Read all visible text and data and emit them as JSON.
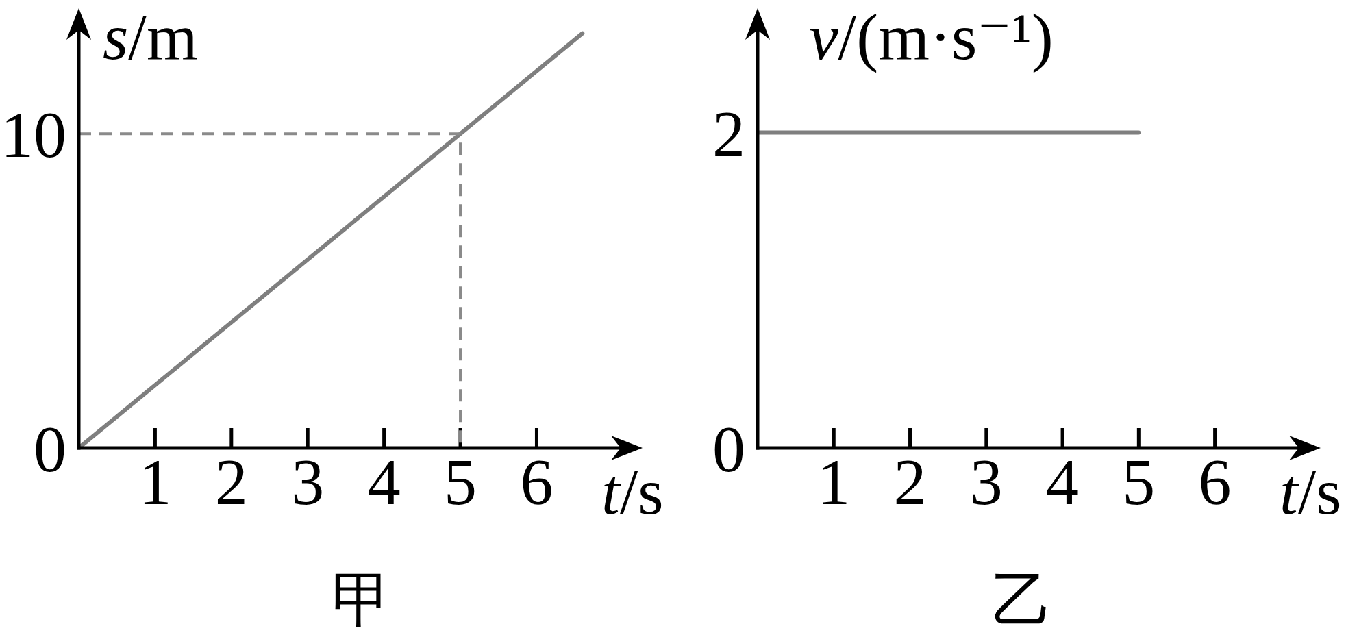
{
  "chart_data": [
    {
      "type": "line",
      "title": "甲",
      "xlabel": "t/s",
      "ylabel": "s/m",
      "series": [
        {
          "x": [
            0,
            6.6
          ],
          "values": [
            0,
            13.2
          ],
          "color": "#7f7f7f"
        },
        {
          "x": [
            0,
            5,
            5
          ],
          "values": [
            10,
            10,
            0
          ],
          "color": "#8a8a8a",
          "line_style": "dashed"
        }
      ],
      "xlim": [
        0,
        7.1
      ],
      "xticks": [
        1,
        2,
        3,
        4,
        5,
        6
      ],
      "ylim": [
        0,
        13.3
      ],
      "yticks": [
        0,
        10
      ]
    },
    {
      "type": "line",
      "title": "乙",
      "xlabel": "t/s",
      "ylabel": "v/(m·s⁻¹)",
      "series": [
        {
          "x": [
            0,
            5
          ],
          "values": [
            2,
            2
          ],
          "color": "#7f7f7f"
        }
      ],
      "xlim": [
        0,
        7.1
      ],
      "xticks": [
        1,
        2,
        3,
        4,
        5,
        6
      ],
      "ylim": [
        0,
        2.65
      ],
      "yticks": [
        0,
        2
      ]
    }
  ]
}
